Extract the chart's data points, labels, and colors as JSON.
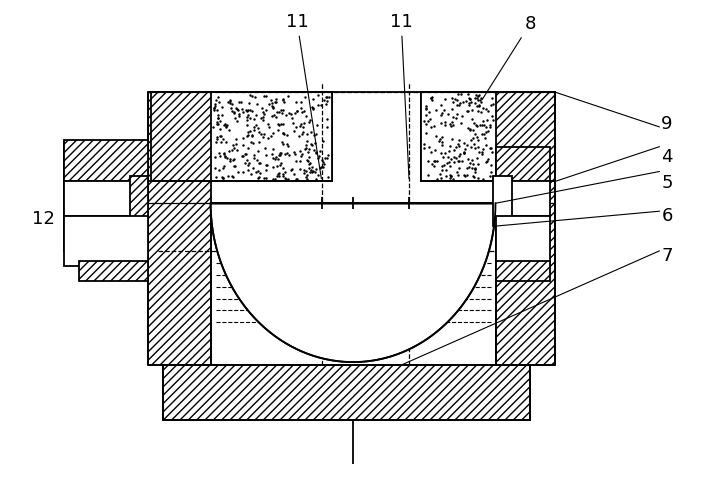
{
  "bg_color": "#ffffff",
  "lc": "#000000",
  "lw": 1.3,
  "fs": 13,
  "figsize": [
    7.23,
    4.82
  ],
  "dpi": 100,
  "xlim": [
    0,
    720
  ],
  "ylim": [
    0,
    480
  ]
}
